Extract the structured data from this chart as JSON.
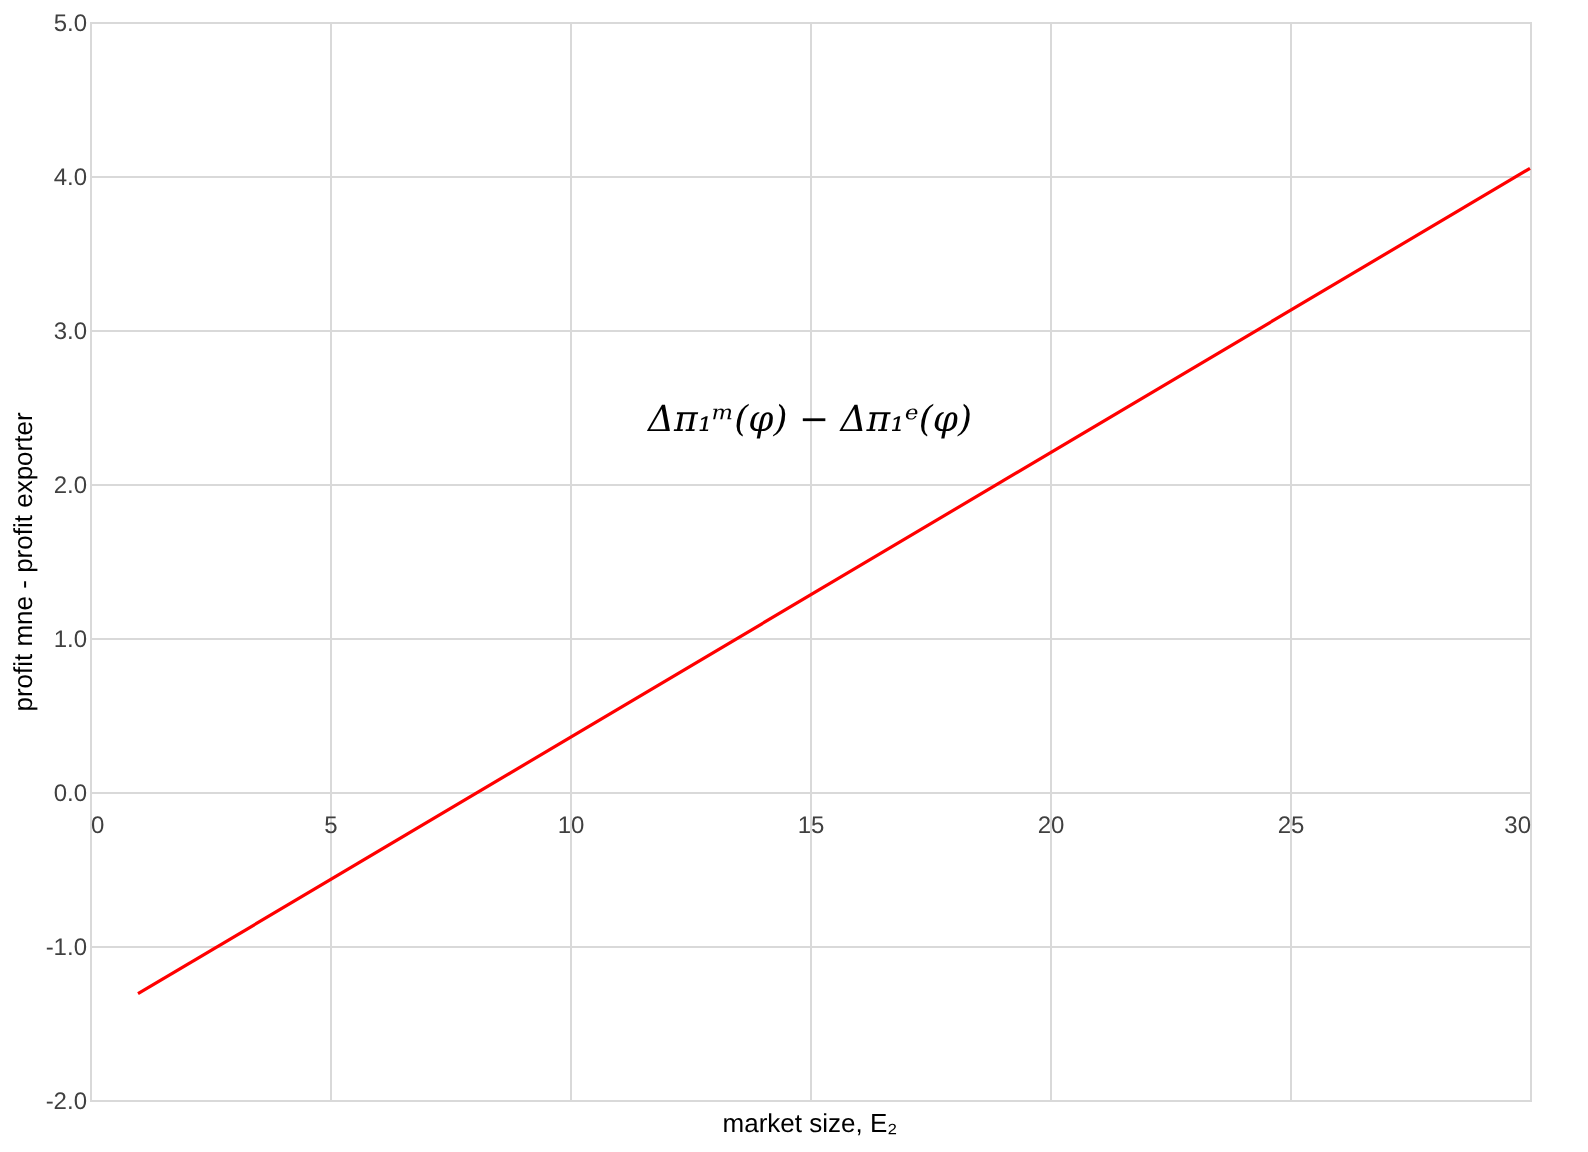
{
  "chart_data": {
    "type": "line",
    "xlabel": "market size, E₂",
    "ylabel": "profit mne - profit exporter",
    "x": [
      1,
      30
    ],
    "series": [
      {
        "color": "#ff0000",
        "values": [
          -1.31,
          4.05
        ]
      }
    ],
    "xlim": [
      0,
      30
    ],
    "xticks": [
      0,
      5,
      10,
      15,
      20,
      25,
      30
    ],
    "ylim": [
      -2.0,
      5.0
    ],
    "yticks": [
      {
        "value": -2,
        "label": "-2.0"
      },
      {
        "value": -1,
        "label": "-1.0"
      },
      {
        "value": 0,
        "label": "0.0"
      },
      {
        "value": 1,
        "label": "1.0"
      },
      {
        "value": 2,
        "label": "2.0"
      },
      {
        "value": 3,
        "label": "3.0"
      },
      {
        "value": 4,
        "label": "4.0"
      },
      {
        "value": 5,
        "label": "5.0"
      }
    ],
    "grid": true,
    "marker": "none",
    "line_style": "solid",
    "annotations": [
      "Δπ₁ᵐ(φ) − Δπ₁ᵉ(φ)"
    ]
  }
}
